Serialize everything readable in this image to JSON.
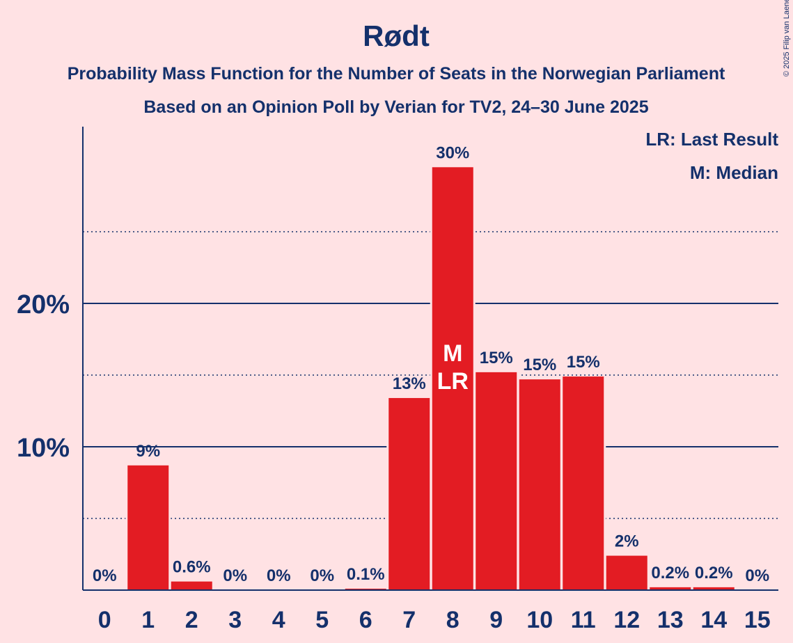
{
  "copyright": "© 2025 Filip van Laenen",
  "colors": {
    "background": "#ffe2e4",
    "bar": "#e31c23",
    "text": "#14306b",
    "bar_label_inside": "#ffffff"
  },
  "chart_data": {
    "type": "bar",
    "title": "Rødt",
    "subtitle": "Probability Mass Function for the Number of Seats in the Norwegian Parliament",
    "subtitle2": "Based on an Opinion Poll by Verian for TV2, 24–30 June 2025",
    "xlabel": "",
    "ylabel": "",
    "categories": [
      "0",
      "1",
      "2",
      "3",
      "4",
      "5",
      "6",
      "7",
      "8",
      "9",
      "10",
      "11",
      "12",
      "13",
      "14",
      "15"
    ],
    "values": [
      0,
      8.7,
      0.6,
      0,
      0,
      0,
      0.1,
      13.4,
      29.5,
      15.2,
      14.7,
      14.9,
      2.4,
      0.2,
      0.2,
      0
    ],
    "value_labels": [
      "0%",
      "9%",
      "0.6%",
      "0%",
      "0%",
      "0%",
      "0.1%",
      "13%",
      "30%",
      "15%",
      "15%",
      "15%",
      "2%",
      "0.2%",
      "0.2%",
      "0%"
    ],
    "ylim": [
      0,
      32
    ],
    "yticks": [
      {
        "value": 10,
        "label": "10%"
      },
      {
        "value": 20,
        "label": "20%"
      }
    ],
    "minor_gridlines": [
      5,
      15,
      25
    ],
    "markers": [
      {
        "category": "8",
        "lines": [
          "M",
          "LR"
        ]
      }
    ],
    "legend": [
      "LR: Last Result",
      "M: Median"
    ],
    "legend_position": "top-right"
  }
}
